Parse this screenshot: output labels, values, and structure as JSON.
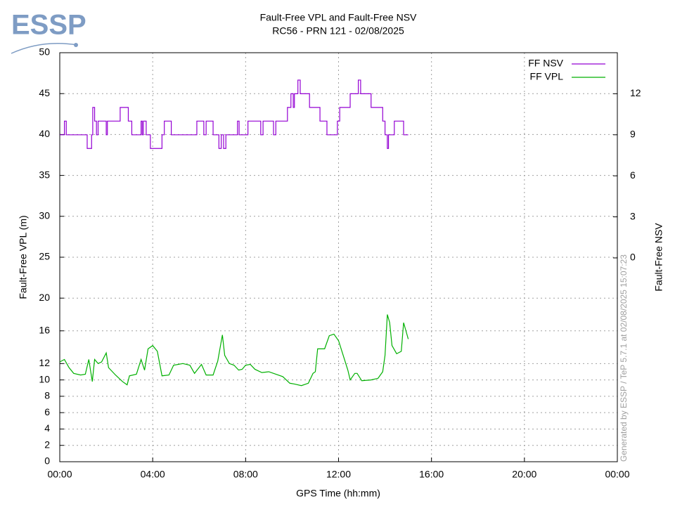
{
  "chart_data": {
    "type": "line",
    "logo": "ESSP",
    "title": "Fault-Free VPL and Fault-Free NSV",
    "subtitle": "RC56 - PRN 121 - 02/08/2025",
    "xlabel": "GPS Time (hh:mm)",
    "ylabel": "Fault-Free VPL (m)",
    "y2label": "Fault-Free NSV",
    "watermark": "Generated by ESSP / TeP 5.7.1 at 02/08/2025 15:07:23",
    "xlim": [
      0,
      24
    ],
    "xticks": [
      {
        "value": 0,
        "label": "00:00"
      },
      {
        "value": 4,
        "label": "04:00"
      },
      {
        "value": 8,
        "label": "08:00"
      },
      {
        "value": 12,
        "label": "12:00"
      },
      {
        "value": 16,
        "label": "16:00"
      },
      {
        "value": 20,
        "label": "20:00"
      },
      {
        "value": 24,
        "label": "00:00"
      }
    ],
    "ylim": [
      0,
      50
    ],
    "yticks": [
      0,
      2,
      4,
      6,
      8,
      10,
      12,
      16,
      20,
      25,
      30,
      35,
      40,
      45,
      50
    ],
    "y2lim": [
      -14.9,
      15
    ],
    "y2ticks": [
      0,
      3,
      6,
      9,
      12
    ],
    "grid": true,
    "legend": "top-right",
    "series": [
      {
        "name": "FF NSV",
        "color": "#9400d3",
        "axis": "y2",
        "step": true,
        "x": [
          0,
          0.2,
          0.28,
          1.18,
          1.37,
          1.42,
          1.5,
          1.58,
          1.65,
          2.0,
          2.05,
          2.6,
          2.95,
          3.1,
          3.5,
          3.55,
          3.6,
          3.72,
          3.9,
          4.4,
          4.5,
          4.8,
          5.9,
          6.2,
          6.3,
          6.6,
          6.85,
          6.95,
          7.05,
          7.15,
          7.65,
          7.72,
          8.1,
          8.65,
          8.75,
          9.2,
          9.3,
          9.8,
          9.95,
          10.05,
          10.1,
          10.25,
          10.35,
          10.75,
          11.2,
          11.5,
          11.95,
          12.05,
          12.5,
          12.85,
          12.95,
          13.4,
          13.9,
          14.0,
          14.1,
          14.15,
          14.4,
          14.8,
          15.0
        ],
        "values": [
          9,
          10,
          9,
          8,
          9,
          11,
          10,
          9,
          10,
          9,
          10,
          11,
          10,
          9,
          10,
          9,
          10,
          9,
          8,
          9,
          10,
          9,
          10,
          9,
          10,
          9,
          8,
          9,
          8,
          9,
          10,
          9,
          10,
          9,
          10,
          9,
          10,
          11,
          12,
          11,
          12,
          13,
          12,
          11,
          10,
          9,
          10,
          11,
          12,
          13,
          12,
          11,
          10,
          9,
          8,
          9,
          10,
          9,
          9
        ]
      },
      {
        "name": "FF VPL",
        "color": "#00b000",
        "x": [
          0.0,
          0.2,
          0.4,
          0.6,
          0.9,
          1.1,
          1.25,
          1.4,
          1.5,
          1.65,
          1.8,
          2.0,
          2.1,
          2.4,
          2.7,
          2.9,
          3.0,
          3.3,
          3.5,
          3.65,
          3.8,
          4.0,
          4.2,
          4.4,
          4.7,
          4.9,
          5.3,
          5.6,
          5.8,
          6.1,
          6.3,
          6.6,
          6.8,
          7.0,
          7.1,
          7.3,
          7.5,
          7.7,
          7.85,
          8.0,
          8.2,
          8.4,
          8.7,
          9.0,
          9.3,
          9.6,
          9.9,
          10.1,
          10.4,
          10.7,
          10.9,
          11.0,
          11.1,
          11.4,
          11.6,
          11.8,
          12.0,
          12.2,
          12.4,
          12.5,
          12.7,
          12.8,
          13.0,
          13.4,
          13.7,
          13.9,
          14.0,
          14.1,
          14.2,
          14.3,
          14.5,
          14.7,
          14.8,
          14.9,
          15.0
        ],
        "values": [
          12.2,
          12.5,
          11.5,
          10.8,
          10.6,
          10.7,
          12.5,
          9.8,
          12.5,
          12.0,
          12.2,
          13.3,
          11.5,
          10.6,
          9.8,
          9.4,
          10.5,
          10.7,
          12.5,
          11.2,
          13.8,
          14.2,
          13.5,
          10.5,
          10.6,
          11.8,
          12.0,
          11.8,
          10.8,
          11.9,
          10.6,
          10.6,
          12.3,
          15.5,
          13.0,
          12.0,
          11.8,
          11.2,
          11.3,
          11.8,
          11.9,
          11.3,
          10.9,
          11.0,
          10.7,
          10.4,
          9.6,
          9.5,
          9.3,
          9.6,
          10.8,
          11.0,
          13.8,
          13.8,
          15.4,
          15.6,
          14.8,
          13.0,
          11.2,
          10.0,
          10.8,
          10.8,
          9.9,
          10.0,
          10.2,
          11.0,
          13.0,
          18.0,
          17.0,
          14.2,
          13.2,
          13.5,
          17.0,
          16.0,
          15.0
        ]
      }
    ]
  }
}
